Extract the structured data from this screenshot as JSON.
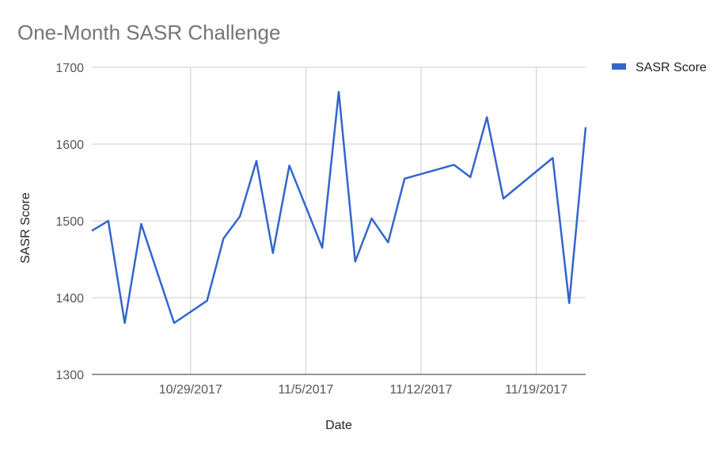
{
  "chart_data": {
    "type": "line",
    "title": "One-Month SASR Challenge",
    "xlabel": "Date",
    "ylabel": "SASR Score",
    "ylim": [
      1300,
      1700
    ],
    "yticks": [
      "1300",
      "1400",
      "1500",
      "1600",
      "1700"
    ],
    "xticks": [
      "10/29/2017",
      "11/5/2017",
      "11/12/2017",
      "11/19/2017"
    ],
    "xlim": [
      "10/23/2017",
      "11/22/2017"
    ],
    "grid": true,
    "legend_position": "top-right",
    "colors": {
      "series": "#3366cc",
      "grid": "#cccccc",
      "axis": "#333333"
    },
    "series": [
      {
        "name": "SASR Score",
        "x": [
          "10/23/2017",
          "10/24/2017",
          "10/25/2017",
          "10/26/2017",
          "10/28/2017",
          "10/30/2017",
          "10/31/2017",
          "11/1/2017",
          "11/2/2017",
          "11/3/2017",
          "11/4/2017",
          "11/6/2017",
          "11/7/2017",
          "11/8/2017",
          "11/9/2017",
          "11/10/2017",
          "11/11/2017",
          "11/14/2017",
          "11/15/2017",
          "11/16/2017",
          "11/17/2017",
          "11/20/2017",
          "11/21/2017",
          "11/22/2017"
        ],
        "values": [
          1487,
          1500,
          1367,
          1496,
          1367,
          1396,
          1477,
          1506,
          1578,
          1458,
          1572,
          1465,
          1668,
          1447,
          1503,
          1472,
          1555,
          1573,
          1557,
          1635,
          1529,
          1582,
          1393,
          1622
        ]
      }
    ]
  }
}
